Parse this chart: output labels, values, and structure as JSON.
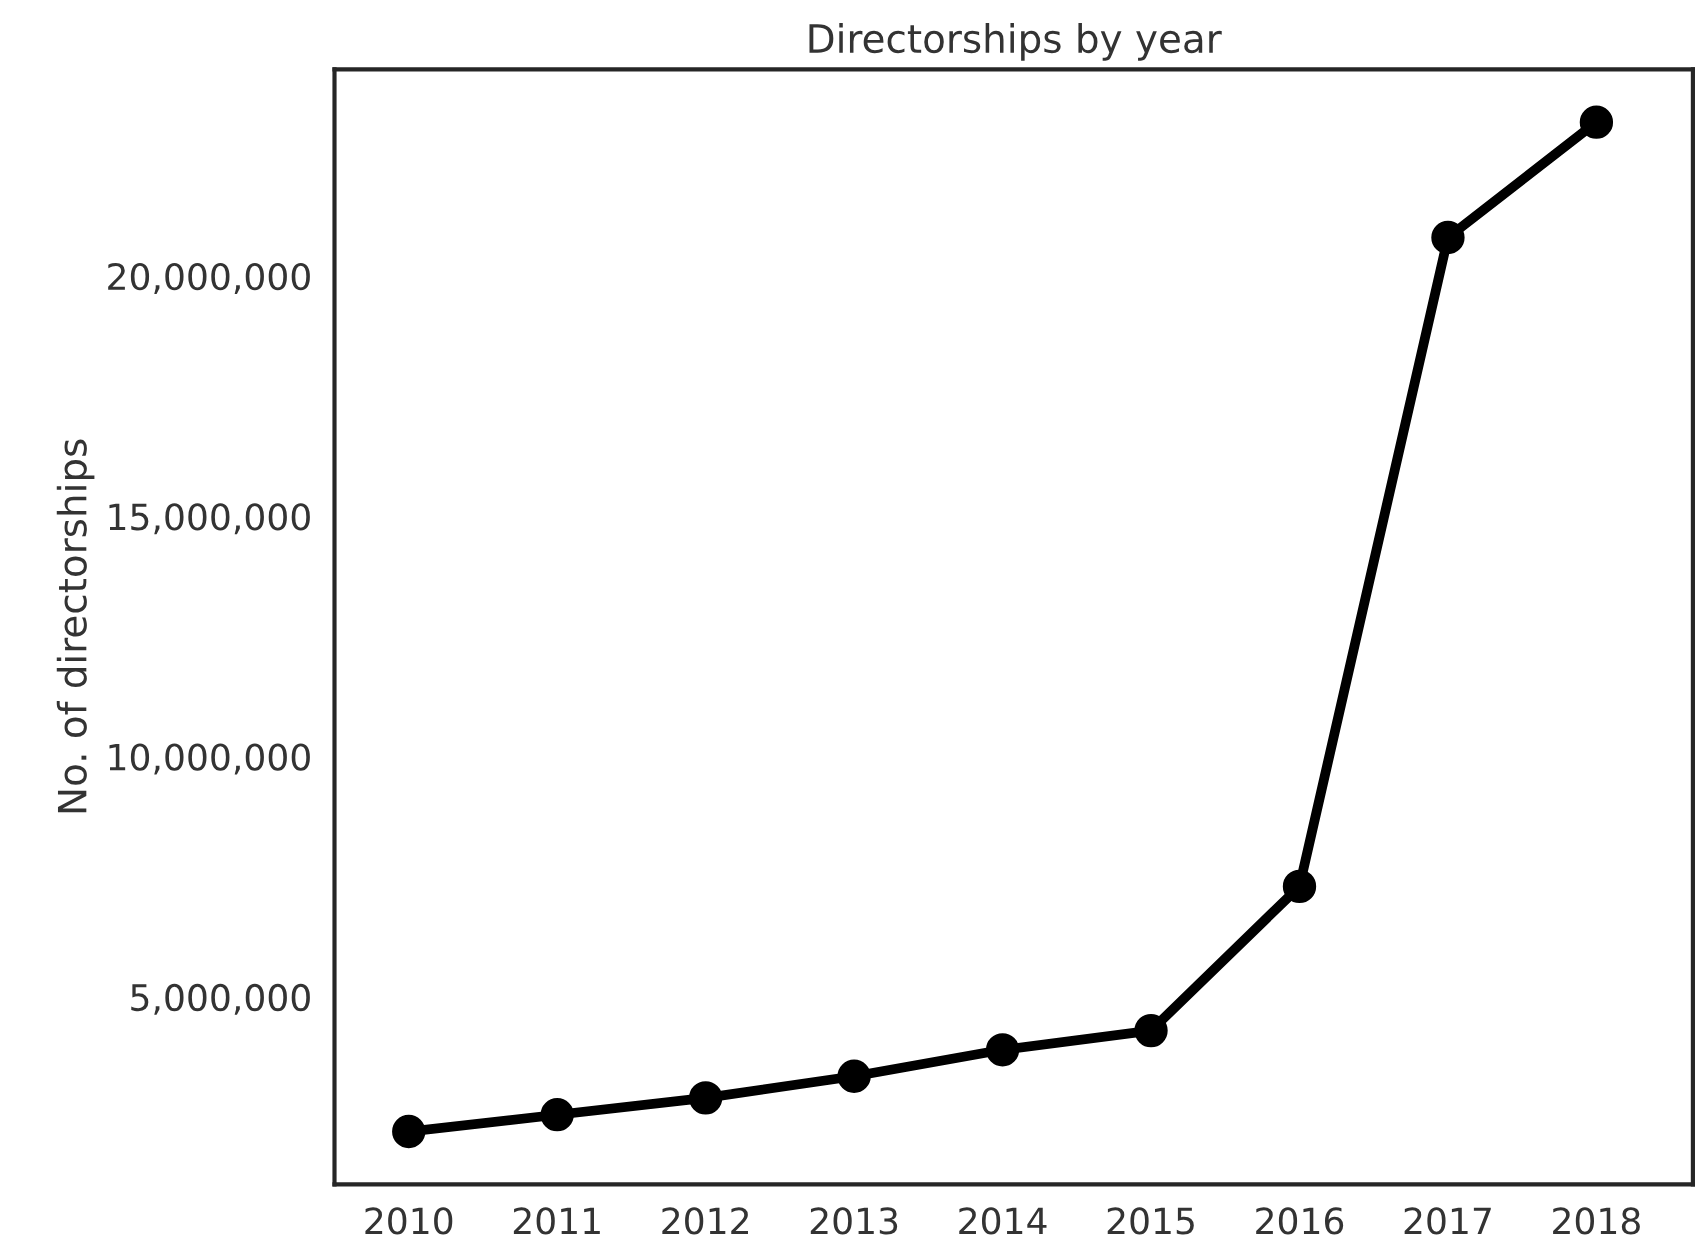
{
  "chart_data": {
    "type": "line",
    "title": "Directorships by year",
    "ylabel": "No. of directorships",
    "categories": [
      "2010",
      "2011",
      "2012",
      "2013",
      "2014",
      "2015",
      "2016",
      "2017",
      "2018"
    ],
    "series": [
      {
        "color": "#000000",
        "values": [
          2200000,
          2550000,
          2900000,
          3350000,
          3900000,
          4300000,
          7300000,
          20800000,
          23200000
        ]
      }
    ],
    "ylim": [
      1100000,
      24300000
    ],
    "yticks": [
      {
        "value": 5000000,
        "label": "5,000,000"
      },
      {
        "value": 10000000,
        "label": "10,000,000"
      },
      {
        "value": 15000000,
        "label": "15,000,000"
      },
      {
        "value": 20000000,
        "label": "20,000,000"
      }
    ],
    "grid": false,
    "legend": false,
    "marker": "circle",
    "line_style": "solid"
  }
}
